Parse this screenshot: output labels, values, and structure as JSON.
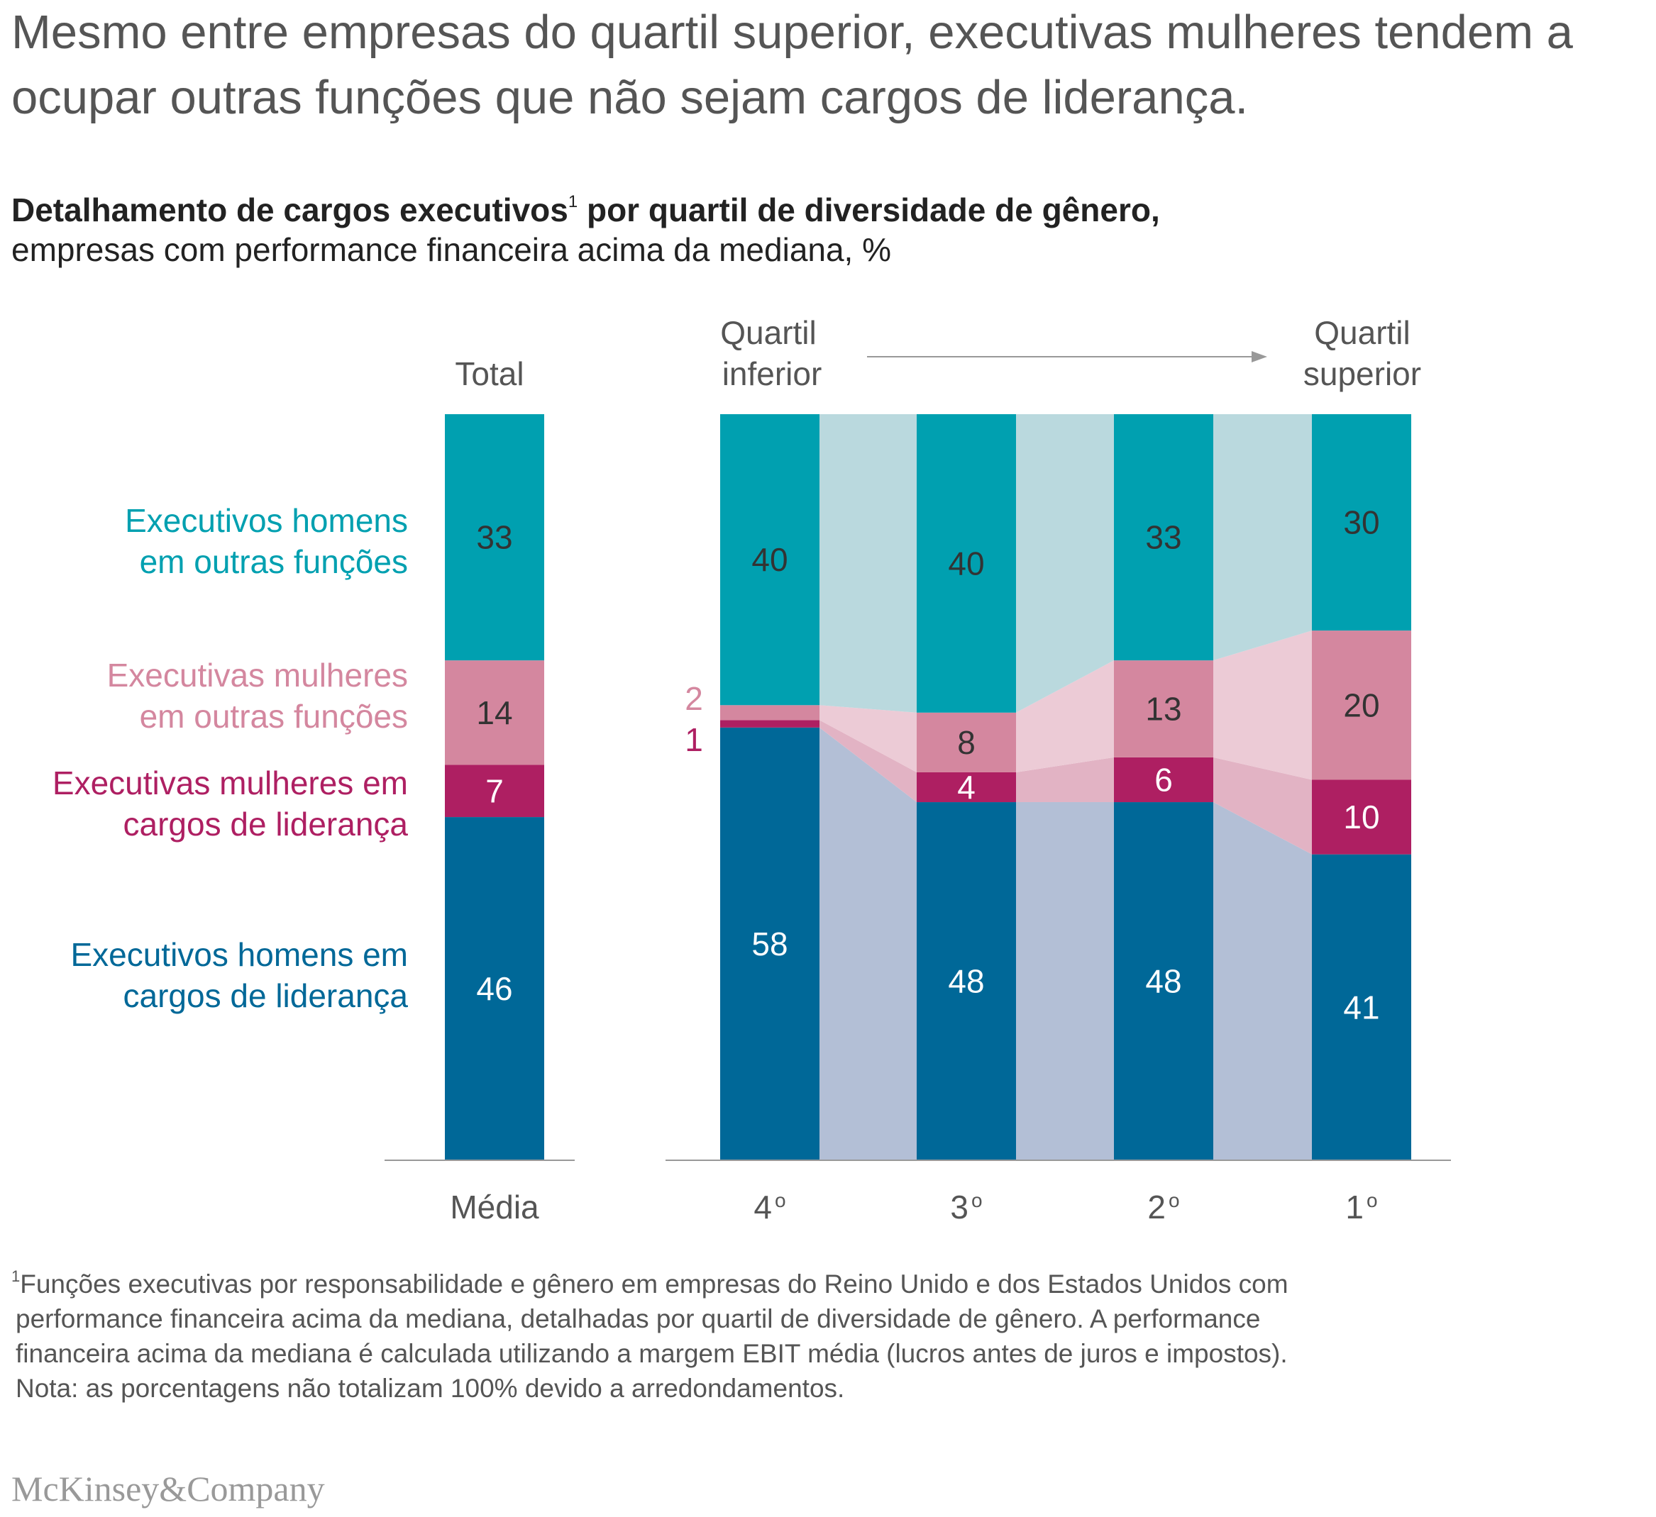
{
  "headline": "Mesmo entre empresas do quartil superior, executivas mulheres tendem a ocupar outras funções que não sejam cargos de liderança.",
  "subtitle": {
    "bold_part1": "Detalhamento de cargos executivos",
    "footnote_marker": "1",
    "bold_part2": " por quartil de diversidade de gênero,",
    "normal": "empresas com performance financeira acima da mediana, %"
  },
  "chart_data": {
    "type": "bar",
    "stacked": true,
    "headers": {
      "total": "Total",
      "left_quartile": [
        "Quartil",
        "inferior"
      ],
      "right_quartile": [
        "Quartil",
        "superior"
      ]
    },
    "categories": [
      "Média",
      "4º",
      "3º",
      "2º",
      "1º"
    ],
    "category_labels": [
      {
        "base": "Média",
        "suffix": ""
      },
      {
        "base": "4",
        "suffix": "o"
      },
      {
        "base": "3",
        "suffix": "o"
      },
      {
        "base": "2",
        "suffix": "o"
      },
      {
        "base": "1",
        "suffix": "o"
      }
    ],
    "ylim": [
      0,
      100
    ],
    "series": [
      {
        "name": "Executivos homens em cargos de liderança",
        "label_lines": [
          "Executivos homens em",
          "cargos de liderança"
        ],
        "values": [
          46,
          58,
          48,
          48,
          41
        ],
        "color": "#006898",
        "band_color": "#b3bfd6",
        "value_text_color": "#ffffff"
      },
      {
        "name": "Executivas mulheres em cargos de liderança",
        "label_lines": [
          "Executivas mulheres em",
          "cargos de liderança"
        ],
        "values": [
          7,
          1,
          4,
          6,
          10
        ],
        "color": "#ae1f62",
        "band_color": "#e2b3c4",
        "value_text_color": "#ffffff"
      },
      {
        "name": "Executivas mulheres em outras funções",
        "label_lines": [
          "Executivas mulheres",
          "em outras funções"
        ],
        "values": [
          14,
          2,
          8,
          13,
          20
        ],
        "color": "#d4879f",
        "band_color": "#eccbd6",
        "value_text_color": "#333333"
      },
      {
        "name": "Executivos homens em outras funções",
        "label_lines": [
          "Executivos homens",
          "em outras funções"
        ],
        "values": [
          33,
          40,
          40,
          33,
          30
        ],
        "color": "#00a0b0",
        "band_color": "#bad9de",
        "value_text_color": "#333333"
      }
    ],
    "legend_colors": [
      "#006898",
      "#ae1f62",
      "#d4879f",
      "#00a0b0"
    ]
  },
  "footnote": {
    "marker": "1",
    "lines": [
      "Funções executivas por responsabilidade e gênero em empresas do Reino Unido e dos Estados Unidos com",
      "performance financeira acima da mediana, detalhadas por quartil de diversidade de gênero. A performance",
      "financeira acima da mediana é calculada utilizando a margem EBIT média (lucros antes de juros e impostos).",
      "Nota: as porcentagens não totalizam 100% devido a arredondamentos."
    ]
  },
  "logo": "McKinsey&Company"
}
